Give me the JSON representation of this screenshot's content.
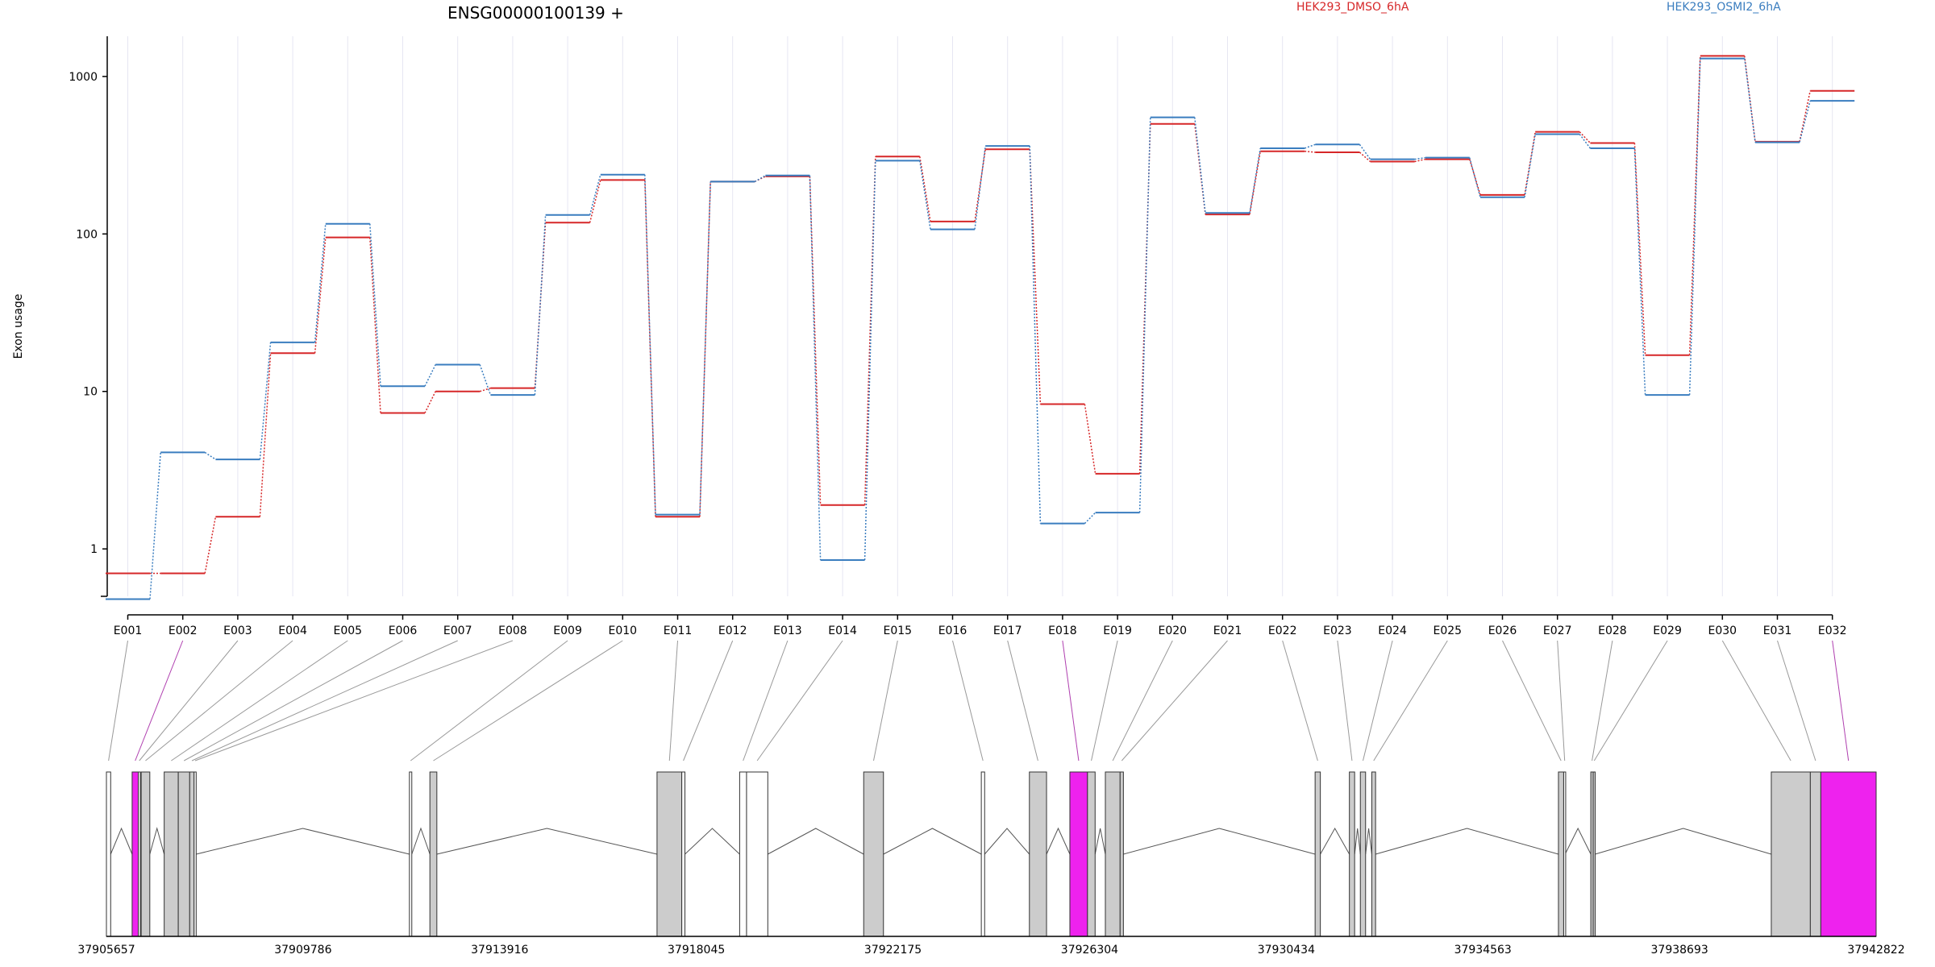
{
  "chart_data": {
    "type": "line",
    "title": "ENSG00000100139 +",
    "ylabel": "Exon usage",
    "yscale": "log",
    "ylim": [
      0.5,
      1800
    ],
    "ytick_labels": [
      "1",
      "10",
      "100",
      "1000"
    ],
    "yticks": [
      1,
      10,
      100,
      1000
    ],
    "grid": "vertical",
    "legend_position": "top",
    "categories": [
      "E001",
      "E002",
      "E003",
      "E004",
      "E005",
      "E006",
      "E007",
      "E008",
      "E009",
      "E010",
      "E011",
      "E012",
      "E013",
      "E014",
      "E015",
      "E016",
      "E017",
      "E018",
      "E019",
      "E020",
      "E021",
      "E022",
      "E023",
      "E024",
      "E025",
      "E026",
      "E027",
      "E028",
      "E029",
      "E030",
      "E031",
      "E032"
    ],
    "series": [
      {
        "name": "HEK293_DMSO_6hA",
        "color": "#d62728",
        "values": [
          0.7,
          0.7,
          1.6,
          17.5,
          95,
          7.3,
          10,
          10.5,
          118,
          220,
          1.6,
          215,
          232,
          1.9,
          310,
          120,
          345,
          8.3,
          3.0,
          500,
          133,
          335,
          330,
          288,
          298,
          177,
          445,
          378,
          17,
          1350,
          385,
          810
        ]
      },
      {
        "name": "HEK293_OSMI2_6hA",
        "color": "#3a7dbf",
        "values": [
          0.48,
          4.1,
          3.7,
          20.5,
          116,
          10.8,
          14.8,
          9.5,
          132,
          238,
          1.65,
          215,
          235,
          0.85,
          292,
          107,
          362,
          1.45,
          1.7,
          550,
          136,
          350,
          370,
          298,
          305,
          171,
          430,
          350,
          9.5,
          1300,
          382,
          700
        ]
      }
    ],
    "gene_model": {
      "x_ticks": [
        "37905657",
        "37909786",
        "37913916",
        "37918045",
        "37922175",
        "37926304",
        "37930434",
        "37934563",
        "37938693",
        "37942822"
      ],
      "x_start": 37905657,
      "x_end": 37942822,
      "exons": [
        {
          "start": 37905657,
          "end": 37905746,
          "fill": "#ffffff",
          "top_label": "E001",
          "stroke": "#777777"
        },
        {
          "start": 37906197,
          "end": 37906326,
          "fill": "#ee22ee",
          "top_label": "E002",
          "stroke": "#b040b0"
        },
        {
          "start": 37906326,
          "end": 37906354,
          "fill": "#ffffff",
          "top_label": "E003",
          "stroke": "#777777"
        },
        {
          "start": 37906387,
          "end": 37906568,
          "fill": "#cccccc",
          "top_label": "E004",
          "stroke": "#777777"
        },
        {
          "start": 37906870,
          "end": 37907166,
          "fill": "#cccccc",
          "top_label": "E005",
          "stroke": "#777777"
        },
        {
          "start": 37907166,
          "end": 37907406,
          "fill": "#cccccc",
          "top_label": "E006",
          "stroke": "#777777"
        },
        {
          "start": 37907406,
          "end": 37907498,
          "fill": "#cccccc",
          "top_label": "E007",
          "stroke": "#777777"
        },
        {
          "start": 37907498,
          "end": 37907542,
          "fill": "#ffffff",
          "top_label": "E008",
          "stroke": "#777777"
        },
        {
          "start": 37912020,
          "end": 37912070,
          "fill": "#ffffff",
          "top_label": "E009",
          "stroke": "#777777"
        },
        {
          "start": 37912450,
          "end": 37912596,
          "fill": "#cccccc",
          "top_label": "E010",
          "stroke": "#777777"
        },
        {
          "start": 37917220,
          "end": 37917740,
          "fill": "#cccccc",
          "top_label": "E011",
          "stroke": "#777777"
        },
        {
          "start": 37917740,
          "end": 37917806,
          "fill": "#ffffff",
          "top_label": "E012",
          "stroke": "#777777"
        },
        {
          "start": 37918955,
          "end": 37919100,
          "fill": "#ffffff",
          "top_label": "E013",
          "stroke": "#777777"
        },
        {
          "start": 37919100,
          "end": 37919546,
          "fill": "#ffffff",
          "top_label": "E014",
          "stroke": "#777777"
        },
        {
          "start": 37921560,
          "end": 37921975,
          "fill": "#cccccc",
          "top_label": "E015",
          "stroke": "#777777"
        },
        {
          "start": 37924030,
          "end": 37924100,
          "fill": "#ffffff",
          "top_label": "E016",
          "stroke": "#777777"
        },
        {
          "start": 37925040,
          "end": 37925400,
          "fill": "#cccccc",
          "top_label": "E017",
          "stroke": "#777777"
        },
        {
          "start": 37925890,
          "end": 37926260,
          "fill": "#ee22ee",
          "top_label": "E018",
          "stroke": "#b040b0"
        },
        {
          "start": 37926260,
          "end": 37926420,
          "fill": "#cccccc",
          "top_label": "E019",
          "stroke": "#777777"
        },
        {
          "start": 37926635,
          "end": 37926945,
          "fill": "#cccccc",
          "top_label": "E020",
          "stroke": "#777777"
        },
        {
          "start": 37926945,
          "end": 37927014,
          "fill": "#cccccc",
          "top_label": "E021",
          "stroke": "#777777"
        },
        {
          "start": 37931040,
          "end": 37931150,
          "fill": "#cccccc",
          "top_label": "E022",
          "stroke": "#777777"
        },
        {
          "start": 37931760,
          "end": 37931870,
          "fill": "#cccccc",
          "top_label": "E023",
          "stroke": "#777777"
        },
        {
          "start": 37931990,
          "end": 37932100,
          "fill": "#cccccc",
          "top_label": "E024",
          "stroke": "#777777"
        },
        {
          "start": 37932230,
          "end": 37932310,
          "fill": "#cccccc",
          "top_label": "E025",
          "stroke": "#777777"
        },
        {
          "start": 37936150,
          "end": 37936260,
          "fill": "#cccccc",
          "top_label": "E026",
          "stroke": "#777777"
        },
        {
          "start": 37936260,
          "end": 37936290,
          "fill": "#ffffff",
          "top_label": "E027",
          "stroke": "#777777"
        },
        {
          "start": 37936830,
          "end": 37936880,
          "fill": "#cccccc",
          "top_label": "E028",
          "stroke": "#777777"
        },
        {
          "start": 37936880,
          "end": 37936920,
          "fill": "#cccccc",
          "top_label": "E029",
          "stroke": "#777777"
        },
        {
          "start": 37940620,
          "end": 37941440,
          "fill": "#cccccc",
          "top_label": "E030",
          "stroke": "#777777"
        },
        {
          "start": 37941440,
          "end": 37941660,
          "fill": "#cccccc",
          "top_label": "E031",
          "stroke": "#777777"
        },
        {
          "start": 37941660,
          "end": 37942822,
          "fill": "#ee22ee",
          "top_label": "E032",
          "stroke": "#b040b0"
        }
      ]
    }
  }
}
